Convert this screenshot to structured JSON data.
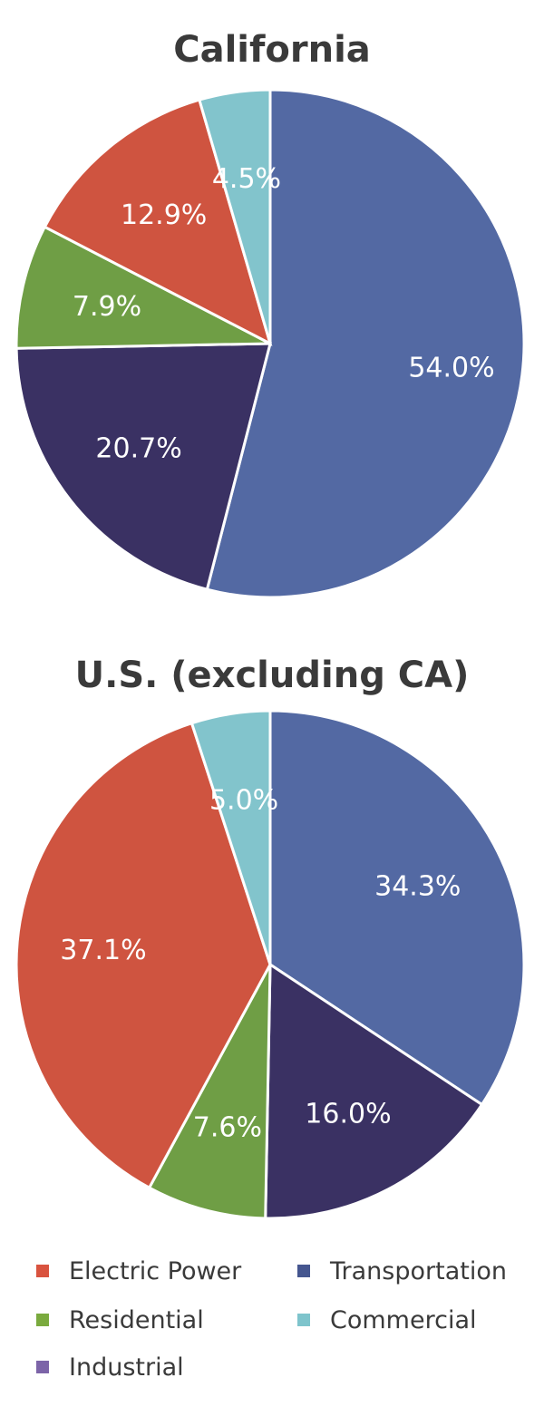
{
  "chart_data": [
    {
      "type": "pie",
      "title": "California",
      "slices": [
        {
          "name": "Transportation",
          "value": 54.0,
          "label": "54.0%"
        },
        {
          "name": "Industrial",
          "value": 20.7,
          "label": "20.7%"
        },
        {
          "name": "Residential",
          "value": 7.9,
          "label": "7.9%"
        },
        {
          "name": "Electric Power",
          "value": 12.9,
          "label": "12.9%"
        },
        {
          "name": "Commercial",
          "value": 4.5,
          "label": "4.5%"
        }
      ]
    },
    {
      "type": "pie",
      "title": "U.S. (excluding CA)",
      "slices": [
        {
          "name": "Transportation",
          "value": 34.3,
          "label": "34.3%"
        },
        {
          "name": "Industrial",
          "value": 16.0,
          "label": "16.0%"
        },
        {
          "name": "Residential",
          "value": 7.6,
          "label": "7.6%"
        },
        {
          "name": "Electric Power",
          "value": 37.1,
          "label": "37.1%"
        },
        {
          "name": "Commercial",
          "value": 5.0,
          "label": "5.0%"
        }
      ]
    }
  ],
  "legend": {
    "position": "bottom",
    "items": [
      {
        "label": "Electric Power",
        "color": "#d9533f"
      },
      {
        "label": "Transportation",
        "color": "#45568f"
      },
      {
        "label": "Residential",
        "color": "#7aaa3e"
      },
      {
        "label": "Commercial",
        "color": "#7ec4cc"
      },
      {
        "label": "Industrial",
        "color": "#7c64a8"
      }
    ]
  },
  "colors": {
    "Transportation": "#5369a3",
    "Industrial": "#3a3163",
    "Residential": "#6f9e45",
    "Electric Power": "#cf5440",
    "Commercial": "#82c4cc"
  }
}
